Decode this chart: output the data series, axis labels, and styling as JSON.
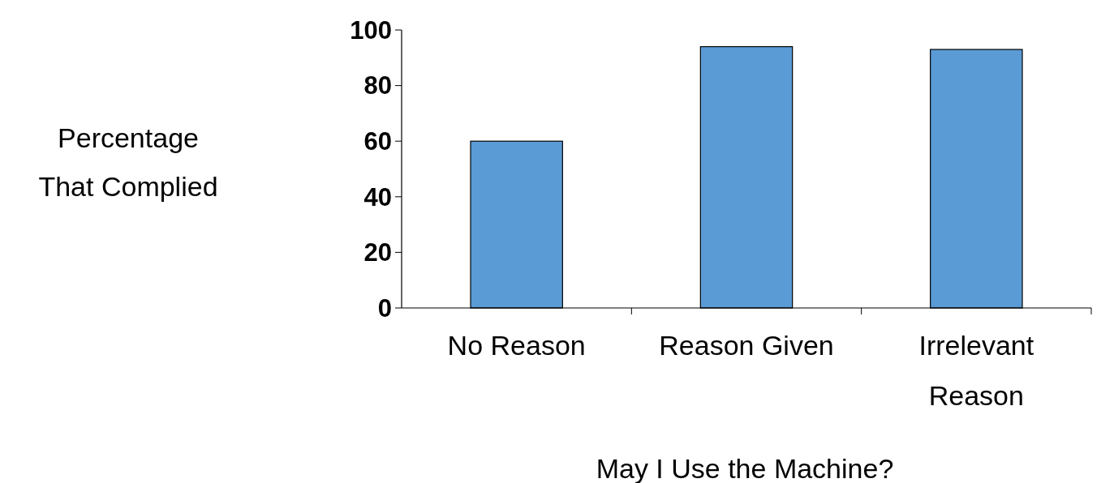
{
  "chart_data": {
    "type": "bar",
    "xlabel": "May I Use the Machine?",
    "ylabel": "Percentage That Complied",
    "categories": [
      "No Reason",
      "Reason Given",
      "Irrelevant Reason"
    ],
    "values": [
      60,
      94,
      93
    ],
    "color": "#5b9bd5",
    "ylim": [
      0,
      100
    ],
    "yticks": [
      0,
      20,
      40,
      60,
      80,
      100
    ],
    "grid": false
  }
}
